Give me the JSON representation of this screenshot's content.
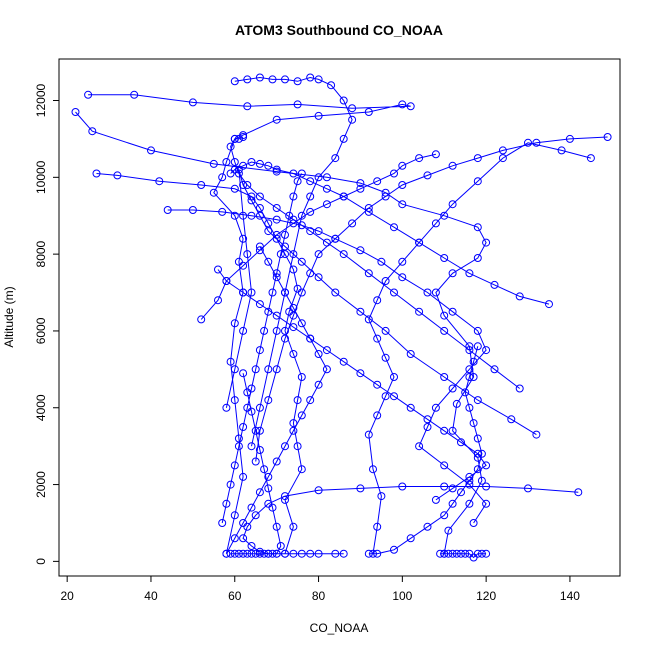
{
  "chart_data": {
    "type": "scatter",
    "title": "ATOM3 Southbound CO_NOAA",
    "xlabel": "CO_NOAA",
    "ylabel": "Altitude (m)",
    "xlim": [
      20,
      150
    ],
    "ylim": [
      0,
      12700
    ],
    "xticks": [
      20,
      40,
      60,
      80,
      100,
      120,
      140
    ],
    "yticks": [
      0,
      2000,
      4000,
      6000,
      8000,
      10000,
      12000
    ],
    "grid": false,
    "legend": "none",
    "color": "#0000ff",
    "marker": "open-circle",
    "connected": true,
    "series": [
      {
        "x": [
          25,
          36,
          50,
          63,
          75,
          88,
          102,
          100,
          92,
          80,
          70,
          62,
          60,
          58,
          57,
          55,
          60,
          62,
          61,
          62,
          60,
          59,
          60,
          61,
          62,
          60,
          58
        ],
        "y": [
          12150,
          12150,
          11950,
          11850,
          11900,
          11800,
          11850,
          11900,
          11700,
          11600,
          11500,
          11100,
          11000,
          10400,
          10000,
          9600,
          9000,
          8400,
          7800,
          7000,
          6200,
          5200,
          4200,
          3200,
          2200,
          1200,
          200
        ]
      },
      {
        "x": [
          22,
          26,
          40,
          55,
          70,
          82,
          90,
          96,
          100,
          110,
          118,
          120,
          118,
          112,
          108,
          110,
          116,
          117,
          113,
          112,
          118,
          119,
          116,
          111,
          110
        ],
        "y": [
          11700,
          11200,
          10700,
          10350,
          10150,
          10000,
          9850,
          9600,
          9300,
          9000,
          8700,
          8300,
          7900,
          7500,
          7000,
          6400,
          5600,
          4800,
          4100,
          3400,
          2700,
          2100,
          1500,
          800,
          200
        ]
      },
      {
        "x": [
          27,
          32,
          42,
          52,
          60,
          64,
          66,
          68,
          70,
          72,
          74,
          75,
          73,
          72,
          74,
          76,
          75,
          74,
          75,
          76,
          72,
          74,
          72
        ],
        "y": [
          10100,
          10050,
          9900,
          9800,
          9700,
          9500,
          9200,
          8800,
          8400,
          8000,
          7600,
          7100,
          6500,
          6000,
          5400,
          4800,
          4200,
          3600,
          3000,
          2400,
          1600,
          900,
          200
        ]
      },
      {
        "x": [
          44,
          50,
          57,
          64,
          70,
          76,
          80,
          84,
          90,
          95,
          100,
          106,
          112,
          118,
          120,
          116,
          112,
          108,
          106,
          104,
          110,
          116,
          120,
          117
        ],
        "y": [
          9150,
          9150,
          9100,
          9000,
          8900,
          8750,
          8600,
          8400,
          8100,
          7800,
          7400,
          7000,
          6500,
          6000,
          5500,
          5000,
          4500,
          4000,
          3500,
          3000,
          2500,
          2000,
          1500,
          1000
        ]
      },
      {
        "x": [
          60,
          63,
          66,
          69,
          72,
          75,
          78,
          80,
          83,
          86,
          88,
          86,
          84,
          80,
          78,
          76,
          74,
          72,
          70,
          68,
          66,
          64
        ],
        "y": [
          12500,
          12550,
          12600,
          12550,
          12550,
          12500,
          12600,
          12550,
          12400,
          12000,
          11500,
          11000,
          10500,
          10000,
          9500,
          9000,
          8000,
          7000,
          6000,
          5000,
          4000,
          3000
        ]
      },
      {
        "x": [
          149,
          140,
          132,
          124,
          118,
          112,
          106,
          100,
          96,
          92,
          88,
          84,
          80,
          78,
          76,
          74,
          72,
          70,
          68,
          66,
          65
        ],
        "y": [
          11050,
          11000,
          10900,
          10700,
          10500,
          10300,
          10050,
          9800,
          9500,
          9200,
          8800,
          8400,
          8000,
          7500,
          7000,
          6400,
          5800,
          5000,
          4200,
          3400,
          2600
        ]
      },
      {
        "x": [
          145,
          138,
          130,
          124,
          118,
          112,
          108,
          104,
          100,
          96,
          94,
          92,
          94,
          96,
          98,
          96,
          94,
          92,
          93,
          95,
          94,
          93
        ],
        "y": [
          10500,
          10700,
          10900,
          10500,
          9900,
          9300,
          8800,
          8300,
          7800,
          7300,
          6800,
          6300,
          5800,
          5300,
          4800,
          4300,
          3800,
          3300,
          2400,
          1700,
          900,
          200
        ]
      },
      {
        "x": [
          142,
          130,
          120,
          110,
          100,
          90,
          80,
          72,
          68,
          65,
          63,
          62,
          64,
          66,
          68,
          70,
          72,
          74,
          76,
          78,
          80,
          84,
          86
        ],
        "y": [
          1800,
          1900,
          1950,
          1950,
          1950,
          1900,
          1850,
          1700,
          1500,
          1200,
          900,
          600,
          400,
          250,
          200,
          200,
          200,
          200,
          200,
          200,
          200,
          200,
          200
        ]
      },
      {
        "x": [
          135,
          128,
          122,
          116,
          110,
          104,
          98,
          92,
          86,
          82,
          78,
          74,
          70,
          68,
          66,
          64,
          62,
          60,
          59
        ],
        "y": [
          6700,
          6900,
          7200,
          7500,
          7900,
          8300,
          8700,
          9100,
          9500,
          9700,
          9900,
          10100,
          10200,
          10300,
          10350,
          10400,
          10300,
          10200,
          10100
        ]
      },
      {
        "x": [
          132,
          126,
          118,
          110,
          102,
          96,
          90,
          84,
          80,
          76,
          72,
          68,
          66,
          64,
          62,
          61,
          62,
          63,
          64,
          62,
          60,
          58
        ],
        "y": [
          3300,
          3700,
          4200,
          4800,
          5400,
          6000,
          6500,
          7000,
          7400,
          7800,
          8200,
          8600,
          9000,
          9400,
          9800,
          10200,
          9000,
          8000,
          7000,
          6000,
          5000,
          4000
        ]
      },
      {
        "x": [
          128,
          122,
          116,
          110,
          104,
          98,
          92,
          86,
          82,
          78,
          74,
          70,
          66,
          63,
          61,
          60,
          59,
          60,
          61,
          62
        ],
        "y": [
          4500,
          5000,
          5500,
          6000,
          6500,
          7000,
          7500,
          8000,
          8300,
          8600,
          8900,
          9200,
          9500,
          9800,
          10100,
          10400,
          10800,
          11000,
          11000,
          11050
        ]
      },
      {
        "x": [
          52,
          56,
          58,
          62,
          66,
          70,
          74,
          78,
          82,
          86,
          90,
          94,
          98,
          100,
          104,
          108
        ],
        "y": [
          6300,
          6800,
          7300,
          7700,
          8100,
          8500,
          8800,
          9100,
          9300,
          9500,
          9700,
          9900,
          10100,
          10300,
          10500,
          10600
        ]
      },
      {
        "x": [
          58,
          60,
          62,
          64,
          66,
          68,
          70,
          72,
          74,
          76,
          78,
          80,
          82,
          80,
          78,
          76,
          74,
          72,
          70,
          68,
          66
        ],
        "y": [
          200,
          600,
          1000,
          1400,
          1800,
          2200,
          2600,
          3000,
          3400,
          3800,
          4200,
          4600,
          5000,
          5400,
          5800,
          6200,
          6600,
          7000,
          7400,
          7800,
          8200
        ]
      },
      {
        "x": [
          57,
          58,
          59,
          60,
          61,
          62,
          63,
          64,
          65,
          66,
          67,
          68,
          69,
          70,
          71,
          72,
          73,
          74,
          75,
          76
        ],
        "y": [
          1000,
          1500,
          2000,
          2500,
          3000,
          3500,
          4000,
          4500,
          5000,
          5500,
          6000,
          6500,
          7000,
          7500,
          8000,
          8500,
          9000,
          9500,
          9900,
          10100
        ]
      },
      {
        "x": [
          59,
          60,
          61,
          62,
          63,
          64,
          65,
          66,
          67,
          68,
          69,
          70,
          71,
          70,
          69,
          68,
          67,
          66,
          65,
          64,
          63,
          62
        ],
        "y": [
          200,
          200,
          200,
          200,
          200,
          200,
          200,
          200,
          200,
          200,
          200,
          200,
          400,
          900,
          1400,
          1900,
          2400,
          2900,
          3400,
          3900,
          4400,
          4900
        ]
      },
      {
        "x": [
          92,
          94,
          98,
          102,
          106,
          110,
          112,
          114,
          116,
          118,
          119,
          118,
          117,
          116,
          115,
          116,
          117,
          118
        ],
        "y": [
          200,
          200,
          300,
          600,
          900,
          1200,
          1500,
          1800,
          2100,
          2400,
          2800,
          3200,
          3600,
          4000,
          4400,
          4800,
          5200,
          5600
        ]
      },
      {
        "x": [
          109,
          110,
          111,
          112,
          113,
          114,
          115,
          116,
          117,
          118,
          119,
          120
        ],
        "y": [
          200,
          200,
          200,
          200,
          200,
          200,
          200,
          200,
          100,
          200,
          200,
          200
        ]
      },
      {
        "x": [
          56,
          58,
          62,
          66,
          70,
          74,
          78,
          82,
          86,
          90,
          94,
          98,
          102,
          106,
          110,
          114,
          118,
          120,
          116,
          112,
          108
        ],
        "y": [
          7600,
          7300,
          7000,
          6700,
          6400,
          6100,
          5800,
          5500,
          5200,
          4900,
          4600,
          4300,
          4000,
          3700,
          3400,
          3100,
          2800,
          2500,
          2200,
          1900,
          1600
        ]
      }
    ]
  }
}
